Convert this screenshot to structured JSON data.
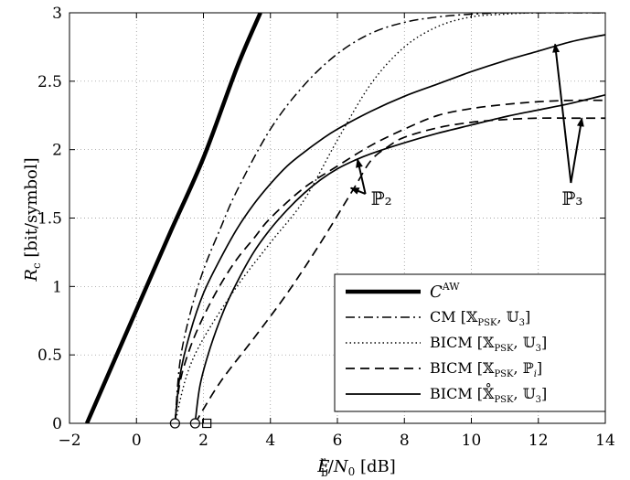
{
  "chart_data": {
    "type": "line",
    "title": "",
    "xlabel": "E_b^r/N_0 [dB]",
    "ylabel": "R_c [bit/symbol]",
    "xlim": [
      -2,
      14
    ],
    "ylim": [
      0,
      3
    ],
    "grid": true,
    "legend_position": "bottom-right",
    "x_ticks": [
      "−2",
      "0",
      "2",
      "4",
      "6",
      "8",
      "10",
      "12",
      "14"
    ],
    "y_ticks": [
      "0",
      "0.5",
      "1",
      "1.5",
      "2",
      "2.5",
      "3"
    ],
    "series": [
      {
        "name": "C^AW",
        "style": "thick-solid",
        "x": [
          -1.48,
          0.0,
          1.0,
          2.0,
          3.0,
          3.7
        ],
        "y": [
          0.0,
          0.83,
          1.39,
          1.94,
          2.6,
          3.0
        ]
      },
      {
        "name": "CM [X_PSK, U_3]",
        "style": "dashdot",
        "x": [
          1.15,
          1.3,
          1.6,
          2.0,
          2.5,
          3.0,
          4.0,
          5.0,
          6.0,
          7.0,
          8.0,
          9.0,
          10.0,
          11.0,
          12.0,
          13.0,
          14.0
        ],
        "y": [
          0.0,
          0.45,
          0.8,
          1.12,
          1.42,
          1.7,
          2.15,
          2.47,
          2.7,
          2.85,
          2.93,
          2.97,
          2.99,
          3.0,
          3.0,
          3.0,
          3.0
        ]
      },
      {
        "name": "BICM [X_PSK, U_3]",
        "style": "dotted",
        "x": [
          1.15,
          1.5,
          2.0,
          3.0,
          4.0,
          5.0,
          6.0,
          7.0,
          8.0,
          9.0,
          10.0,
          11.0,
          12.0,
          14.0
        ],
        "y": [
          0.0,
          0.35,
          0.62,
          1.0,
          1.32,
          1.63,
          2.07,
          2.48,
          2.75,
          2.9,
          2.97,
          2.99,
          3.0,
          3.0
        ]
      },
      {
        "name": "BICM [X_PSK, P_2]",
        "style": "dashed",
        "x": [
          1.75,
          2.5,
          3.5,
          4.5,
          5.5,
          6.5,
          7.0,
          7.5,
          8.0,
          9.0,
          10.0,
          11.0,
          12.0,
          13.0,
          14.0
        ],
        "y": [
          0.0,
          0.3,
          0.62,
          0.95,
          1.32,
          1.72,
          1.92,
          2.02,
          2.09,
          2.16,
          2.2,
          2.22,
          2.23,
          2.23,
          2.23
        ]
      },
      {
        "name": "BICM [X_PSK, P_3]",
        "style": "dashed",
        "x": [
          1.15,
          1.3,
          1.6,
          2.0,
          2.5,
          3.0,
          3.5,
          4.0,
          5.0,
          6.0,
          7.0,
          8.0,
          9.0,
          10.0,
          11.0,
          12.0,
          13.0,
          14.0
        ],
        "y": [
          0.0,
          0.3,
          0.55,
          0.78,
          1.01,
          1.2,
          1.35,
          1.5,
          1.72,
          1.88,
          2.03,
          2.15,
          2.25,
          2.3,
          2.33,
          2.35,
          2.36,
          2.36
        ]
      },
      {
        "name": "BICM [X̊_PSK, U_3] (lower)",
        "style": "solid",
        "x": [
          1.75,
          1.9,
          2.2,
          2.6,
          3.0,
          3.5,
          4.0,
          4.5,
          5.0,
          5.5,
          6.0,
          6.5,
          7.0,
          8.0,
          9.0,
          10.0,
          11.0,
          12.0,
          13.0,
          14.0
        ],
        "y": [
          0.0,
          0.28,
          0.55,
          0.82,
          1.03,
          1.25,
          1.42,
          1.56,
          1.68,
          1.78,
          1.86,
          1.92,
          1.97,
          2.05,
          2.12,
          2.18,
          2.24,
          2.29,
          2.34,
          2.4
        ]
      },
      {
        "name": "BICM [X̊_PSK, U_3] (upper)",
        "style": "solid",
        "x": [
          1.15,
          1.3,
          1.6,
          2.0,
          2.5,
          3.0,
          3.5,
          4.0,
          4.5,
          5.0,
          5.5,
          6.0,
          7.0,
          8.0,
          9.0,
          10.0,
          11.0,
          12.0,
          13.0,
          14.0
        ],
        "y": [
          0.0,
          0.35,
          0.66,
          0.95,
          1.2,
          1.42,
          1.6,
          1.75,
          1.88,
          1.98,
          2.07,
          2.15,
          2.28,
          2.39,
          2.48,
          2.57,
          2.65,
          2.72,
          2.79,
          2.84
        ]
      }
    ],
    "markers": [
      {
        "shape": "circle",
        "x": 1.15,
        "y": 0
      },
      {
        "shape": "circle",
        "x": 1.75,
        "y": 0
      },
      {
        "shape": "square",
        "x": 2.1,
        "y": 0
      }
    ],
    "annotations": [
      {
        "label": "ℙ₂",
        "x": 7.0,
        "y": 1.65,
        "arrows_to": [
          [
            6.6,
            1.93
          ],
          [
            6.4,
            1.72
          ]
        ]
      },
      {
        "label": "ℙ₃",
        "x": 12.7,
        "y": 1.65,
        "arrows_to": [
          [
            12.5,
            2.77
          ],
          [
            13.3,
            2.23
          ]
        ]
      }
    ],
    "legend": [
      {
        "label": "C^AW",
        "style": "thick-solid"
      },
      {
        "label": "CM [X_PSK, U_3]",
        "style": "dashdot"
      },
      {
        "label": "BICM [X_PSK, U_3]",
        "style": "dotted"
      },
      {
        "label": "BICM [X_PSK, P_i]",
        "style": "dashed"
      },
      {
        "label": "BICM [X̊_PSK, U_3]",
        "style": "solid"
      }
    ]
  }
}
